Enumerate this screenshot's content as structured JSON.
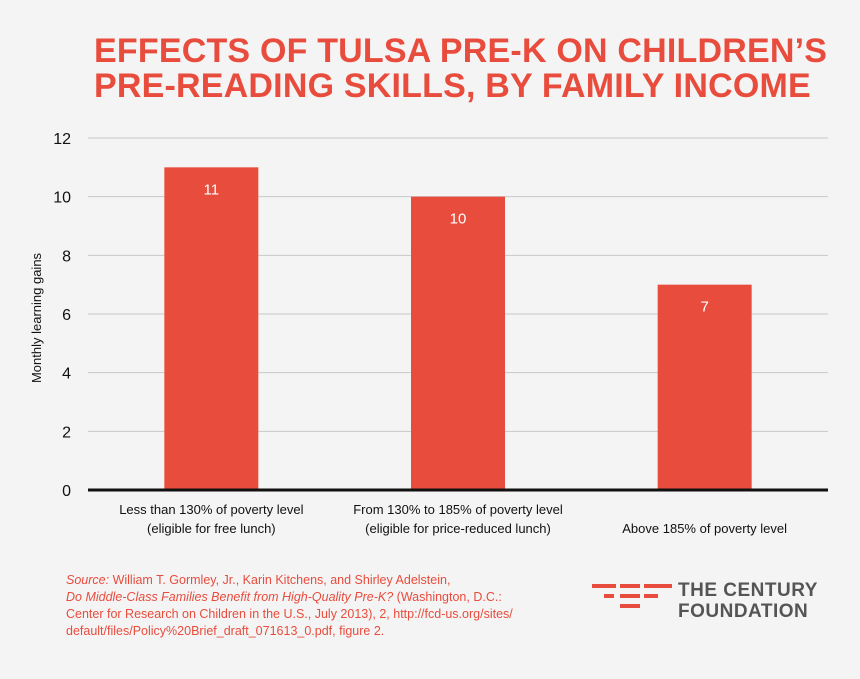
{
  "title": {
    "line1": "EFFECTS OF TULSA PRE-K ON CHILDREN’S",
    "line2": "PRE-READING SKILLS, BY FAMILY INCOME"
  },
  "chart_data": {
    "type": "bar",
    "title": "EFFECTS OF TULSA PRE-K ON CHILDREN’S PRE-READING SKILLS, BY FAMILY INCOME",
    "xlabel": "",
    "ylabel": "Monthly learning gains",
    "ylim": [
      0,
      12
    ],
    "yticks": [
      0,
      2,
      4,
      6,
      8,
      10,
      12
    ],
    "grid": true,
    "categories": [
      [
        "Less than 130% of poverty level",
        "(eligible for free lunch)"
      ],
      [
        "From 130% to 185% of poverty level",
        "(eligible for price-reduced lunch)"
      ],
      [
        "Above 185% of poverty level"
      ]
    ],
    "values": [
      11,
      10,
      7
    ],
    "data_labels": [
      "11",
      "10",
      "7"
    ],
    "bar_color": "#e84c3d",
    "grid_color": "#c9c9c9",
    "axis_color": "#111111"
  },
  "source": {
    "label": "Source:",
    "authors": "William T. Gormley, Jr., Karin Kitchens, and Shirley Adelstein,",
    "pub_title": "Do Middle-Class Families Benefit from High-Quality Pre-K?",
    "rest": "(Washington, D.C.: Center for Research on Children in the U.S., July 2013), 2, http://fcd-us.org/sites/ default/files/Policy%20Brief_draft_071613_0.pdf, figure 2."
  },
  "logo": {
    "line1": "THE CENTURY",
    "line2": "FOUNDATION",
    "accent": "#e84c3d"
  }
}
